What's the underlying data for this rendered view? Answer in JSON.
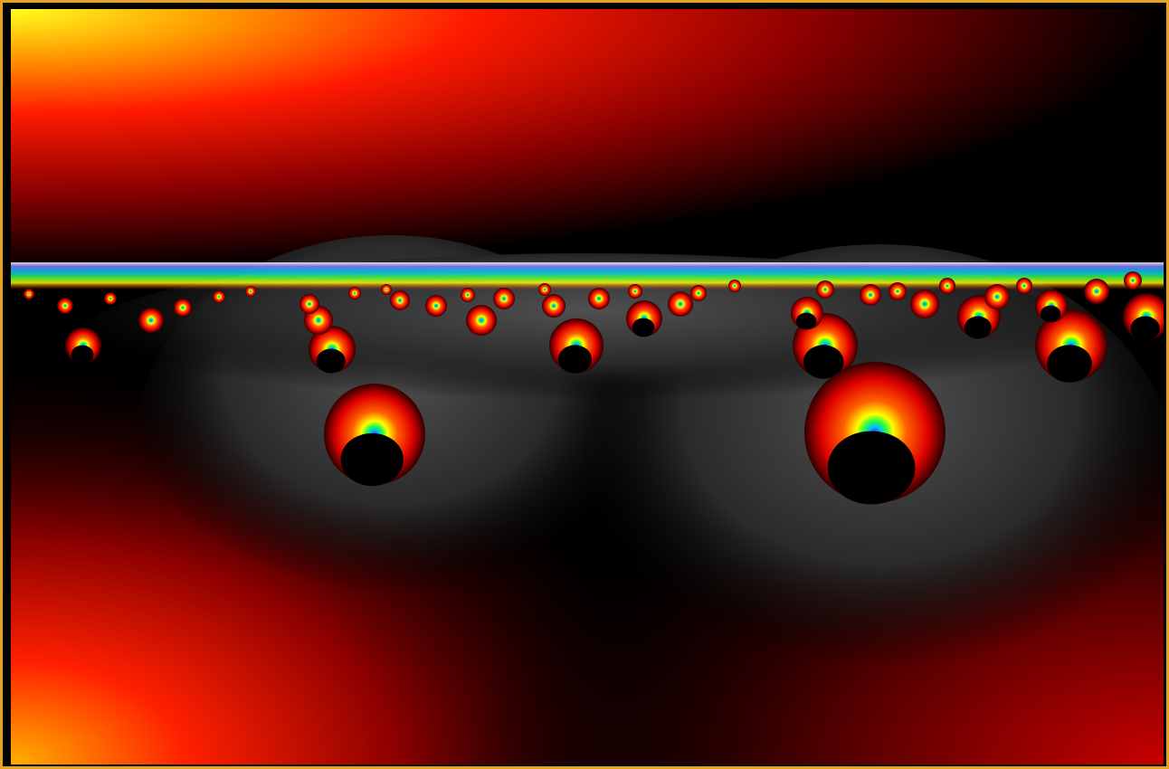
{
  "colors": {
    "frame": "#e8a21c",
    "background": "#000000",
    "glow_yellow": "#ffff00",
    "glow_orange": "#ff8c00",
    "glow_red": "#ff0000",
    "dark_red": "#6a0000",
    "gray_floor": "#3a3a3a"
  }
}
